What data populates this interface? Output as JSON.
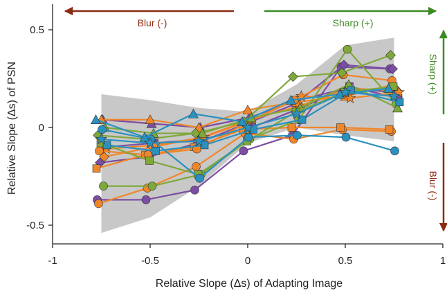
{
  "chart_data": {
    "type": "line",
    "title": "",
    "xlabel": "Relative Slope (Δs) of Adapting Image",
    "ylabel": "Relative Slope (Δs) of PSN",
    "xlim": [
      -1,
      1
    ],
    "ylim": [
      -0.6,
      0.6
    ],
    "xticks": [
      -1,
      -0.5,
      0,
      0.5,
      1
    ],
    "xtick_labels": [
      "-1",
      "-0.5",
      "0",
      "0.5",
      "1"
    ],
    "yticks": [
      -0.5,
      0,
      0.5
    ],
    "ytick_labels": [
      "-0.5",
      "0",
      "0.5"
    ],
    "grid": false,
    "x": [
      -0.75,
      -0.5,
      -0.25,
      0,
      0.25,
      0.5,
      0.75
    ],
    "band": {
      "color": "#c8c8c8",
      "upper": [
        0.17,
        0.14,
        0.1,
        0.08,
        0.22,
        0.42,
        0.46
      ],
      "lower": [
        -0.54,
        -0.46,
        -0.3,
        -0.08,
        0.0,
        -0.04,
        -0.07
      ]
    },
    "annotations": {
      "blur_top": {
        "text": "Blur (-)",
        "color": "#8b2b12"
      },
      "sharp_top": {
        "text": "Sharp (+)",
        "color": "#3d8a24"
      },
      "sharp_side": {
        "text": "Sharp (+)",
        "color": "#3d8a24"
      },
      "blur_side": {
        "text": "Blur (-)",
        "color": "#8b2b12"
      }
    },
    "series": [
      {
        "color": "#7b4ea3",
        "marker": "circle",
        "values": [
          -0.37,
          -0.37,
          -0.32,
          -0.12,
          -0.04,
          0.31,
          0.3
        ]
      },
      {
        "color": "#7b4ea3",
        "marker": "diamond",
        "values": [
          -0.18,
          -0.15,
          -0.08,
          0.02,
          0.12,
          0.32,
          0.3
        ]
      },
      {
        "color": "#7b4ea3",
        "marker": "triangle",
        "values": [
          0.04,
          0.02,
          0.0,
          0.05,
          0.14,
          0.2,
          0.18
        ]
      },
      {
        "color": "#7b4ea3",
        "marker": "square",
        "values": [
          -0.1,
          -0.08,
          -0.06,
          0.0,
          0.1,
          0.21,
          0.15
        ]
      },
      {
        "color": "#f0862a",
        "marker": "circle",
        "values": [
          -0.39,
          -0.31,
          -0.2,
          -0.03,
          -0.06,
          -0.01,
          -0.02
        ]
      },
      {
        "color": "#f0862a",
        "marker": "diamond",
        "values": [
          -0.15,
          -0.1,
          -0.05,
          0.04,
          0.11,
          0.2,
          0.19
        ]
      },
      {
        "color": "#f0862a",
        "marker": "triangle",
        "values": [
          0.04,
          0.04,
          0.0,
          0.09,
          0.13,
          0.16,
          0.22
        ]
      },
      {
        "color": "#f0862a",
        "marker": "square",
        "values": [
          -0.21,
          -0.14,
          -0.1,
          -0.01,
          0.0,
          0.0,
          -0.01
        ]
      },
      {
        "color": "#f0862a",
        "marker": "star",
        "values": [
          -0.11,
          -0.09,
          -0.05,
          0.04,
          0.16,
          0.15,
          0.18
        ]
      },
      {
        "color": "#f0862a",
        "marker": "circle",
        "values": [
          -0.12,
          -0.14,
          -0.11,
          0.02,
          0.14,
          0.27,
          0.24
        ]
      },
      {
        "color": "#7fa83a",
        "marker": "circle",
        "values": [
          -0.3,
          -0.3,
          -0.24,
          -0.06,
          0.04,
          0.4,
          0.12
        ]
      },
      {
        "color": "#7fa83a",
        "marker": "diamond",
        "values": [
          -0.04,
          -0.06,
          -0.03,
          0.03,
          0.26,
          0.28,
          0.37
        ]
      },
      {
        "color": "#7fa83a",
        "marker": "triangle",
        "values": [
          0.0,
          -0.03,
          -0.03,
          0.05,
          0.1,
          0.22,
          0.1
        ]
      },
      {
        "color": "#7fa83a",
        "marker": "square",
        "values": [
          -0.08,
          -0.17,
          -0.24,
          -0.07,
          0.08,
          0.18,
          0.21
        ]
      },
      {
        "color": "#2a91bf",
        "marker": "circle",
        "values": [
          -0.01,
          -0.06,
          -0.26,
          -0.05,
          -0.04,
          -0.05,
          -0.12
        ]
      },
      {
        "color": "#2a91bf",
        "marker": "triangle",
        "values": [
          0.04,
          -0.05,
          0.07,
          0.03,
          0.14,
          0.17,
          0.2
        ]
      },
      {
        "color": "#2a91bf",
        "marker": "square",
        "values": [
          -0.09,
          -0.12,
          -0.09,
          -0.01,
          0.04,
          0.19,
          0.13
        ]
      },
      {
        "color": "#2a91bf",
        "marker": "star",
        "values": [
          -0.06,
          -0.08,
          -0.07,
          0.0,
          0.07,
          0.18,
          0.16
        ]
      }
    ]
  }
}
